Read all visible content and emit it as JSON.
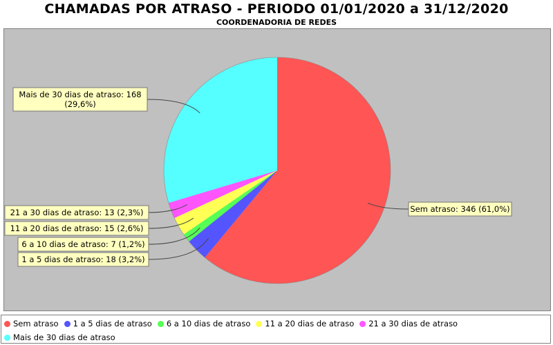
{
  "title": "CHAMADAS POR ATRASO - PERIODO 01/01/2020 a 31/12/2020",
  "subtitle": "COORDENADORIA DE REDES",
  "colors": {
    "plot_background": "#c0c0c0",
    "label_box": "#ffffc0"
  },
  "chart_data": {
    "type": "pie",
    "title": "CHAMADAS POR ATRASO - PERIODO 01/01/2020 a 31/12/2020",
    "subtitle": "COORDENADORIA DE REDES",
    "legend_position": "bottom",
    "slices": [
      {
        "name": "Sem atraso",
        "value": 346,
        "percent": "61,0%",
        "color": "#ff5555",
        "label": "Sem atraso: 346 (61,0%)"
      },
      {
        "name": "1 a 5 dias de atraso",
        "value": 18,
        "percent": "3,2%",
        "color": "#5555ff",
        "label": "1 a 5 dias de atraso: 18 (3,2%)"
      },
      {
        "name": "6 a 10 dias de atraso",
        "value": 7,
        "percent": "1,2%",
        "color": "#55ff55",
        "label": "6 a 10 dias de atraso: 7 (1,2%)"
      },
      {
        "name": "11 a 20 dias de atraso",
        "value": 15,
        "percent": "2,6%",
        "color": "#ffff55",
        "label": "11 a 20 dias de atraso: 15 (2,6%)"
      },
      {
        "name": "21 a 30 dias de atraso",
        "value": 13,
        "percent": "2,3%",
        "color": "#ff55ff",
        "label": "21 a 30 dias de atraso: 13 (2,3%)"
      },
      {
        "name": "Mais de 30 dias de atraso",
        "value": 168,
        "percent": "29,6%",
        "color": "#55ffff",
        "label_lines": [
          "Mais de 30 dias de atraso: 168",
          "(29,6%)"
        ]
      }
    ]
  }
}
